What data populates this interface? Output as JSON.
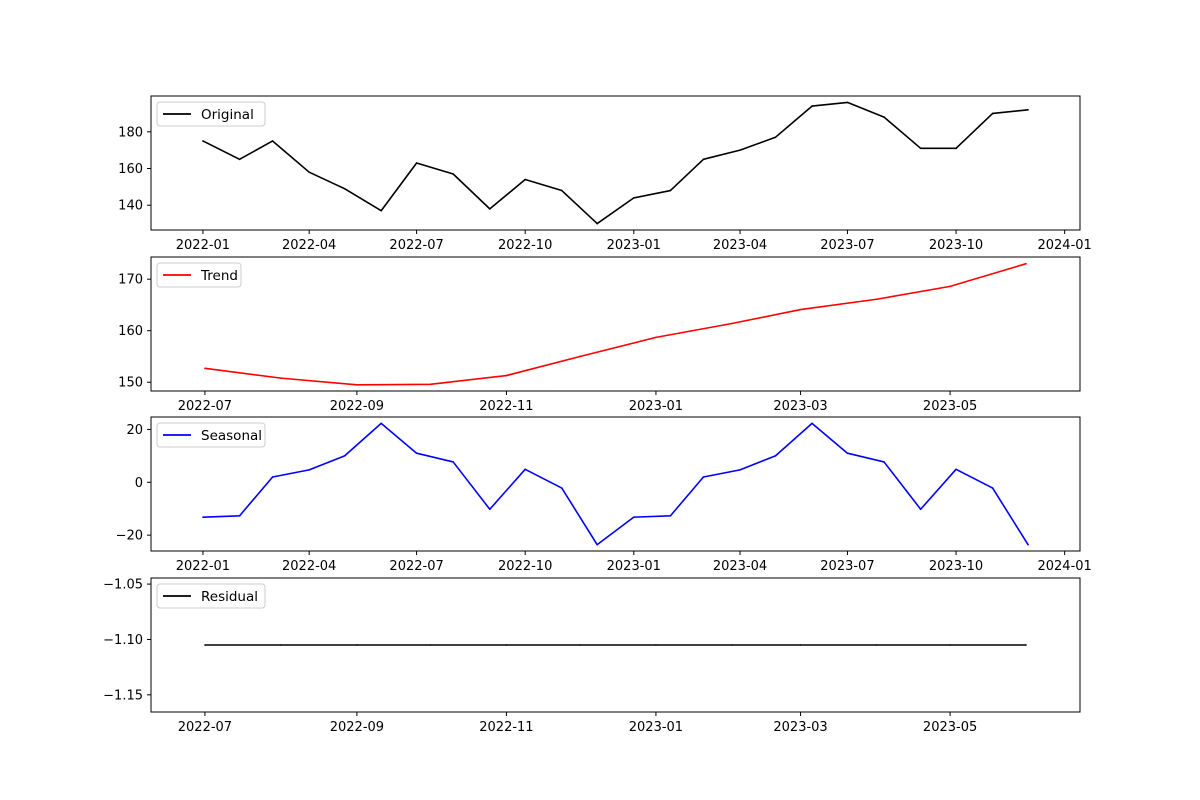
{
  "chart_data": [
    {
      "type": "line",
      "x_type": "date",
      "x": [
        "2022-01-01",
        "2022-02-01",
        "2022-03-01",
        "2022-04-01",
        "2022-05-01",
        "2022-06-01",
        "2022-07-01",
        "2022-08-01",
        "2022-09-01",
        "2022-10-01",
        "2022-11-01",
        "2022-12-01",
        "2023-01-01",
        "2023-02-01",
        "2023-03-01",
        "2023-04-01",
        "2023-05-01",
        "2023-06-01",
        "2023-07-01",
        "2023-08-01",
        "2023-09-01",
        "2023-10-01",
        "2023-11-01",
        "2023-12-01"
      ],
      "series": [
        {
          "name": "Original",
          "color": "#000000",
          "values": [
            175,
            165,
            175,
            158,
            149,
            137,
            163,
            157,
            138,
            154,
            148,
            130,
            144,
            148,
            165,
            170,
            177,
            194,
            196,
            188,
            171,
            171,
            190,
            192
          ]
        }
      ],
      "xlim": [
        "2021-11-18",
        "2024-01-14"
      ],
      "ylim": [
        126.5,
        199.5
      ],
      "xticks": [
        "2022-01",
        "2022-04",
        "2022-07",
        "2022-10",
        "2023-01",
        "2023-04",
        "2023-07",
        "2023-10",
        "2024-01"
      ],
      "yticks": [
        140,
        160,
        180
      ],
      "legend_position": "upper-left",
      "grid": false
    },
    {
      "type": "line",
      "x_type": "date",
      "x": [
        "2022-07-01",
        "2022-08-01",
        "2022-09-01",
        "2022-10-01",
        "2022-11-01",
        "2022-12-01",
        "2023-01-01",
        "2023-02-01",
        "2023-03-01",
        "2023-04-01",
        "2023-05-01",
        "2023-06-01"
      ],
      "series": [
        {
          "name": "Trend",
          "color": "#ff0000",
          "values": [
            152.7,
            150.8,
            149.5,
            149.6,
            151.3,
            155.0,
            158.7,
            161.4,
            164.1,
            166.1,
            168.6,
            173.0
          ]
        }
      ],
      "xlim": [
        "2022-06-09",
        "2023-06-23"
      ],
      "ylim": [
        148.3,
        174.3
      ],
      "xticks": [
        "2022-07",
        "2022-09",
        "2022-11",
        "2023-01",
        "2023-03",
        "2023-05"
      ],
      "yticks": [
        150,
        160,
        170
      ],
      "legend_position": "upper-left",
      "grid": false
    },
    {
      "type": "line",
      "x_type": "date",
      "x": [
        "2022-01-01",
        "2022-02-01",
        "2022-03-01",
        "2022-04-01",
        "2022-05-01",
        "2022-06-01",
        "2022-07-01",
        "2022-08-01",
        "2022-09-01",
        "2022-10-01",
        "2022-11-01",
        "2022-12-01",
        "2023-01-01",
        "2023-02-01",
        "2023-03-01",
        "2023-04-01",
        "2023-05-01",
        "2023-06-01",
        "2023-07-01",
        "2023-08-01",
        "2023-09-01",
        "2023-10-01",
        "2023-11-01",
        "2023-12-01"
      ],
      "series": [
        {
          "name": "Seasonal",
          "color": "#0000ff",
          "values": [
            -13.2,
            -12.7,
            2.0,
            4.7,
            10.0,
            22.3,
            11.0,
            7.7,
            -10.2,
            4.9,
            -2.2,
            -23.6,
            -13.2,
            -12.7,
            2.0,
            4.7,
            10.0,
            22.3,
            11.0,
            7.7,
            -10.2,
            4.9,
            -2.2,
            -23.6
          ]
        }
      ],
      "xlim": [
        "2021-11-18",
        "2024-01-14"
      ],
      "ylim": [
        -26.0,
        24.7
      ],
      "xticks": [
        "2022-01",
        "2022-04",
        "2022-07",
        "2022-10",
        "2023-01",
        "2023-04",
        "2023-07",
        "2023-10",
        "2024-01"
      ],
      "yticks": [
        -20,
        0,
        20
      ],
      "legend_position": "upper-left",
      "grid": false
    },
    {
      "type": "line",
      "x_type": "date",
      "x": [
        "2022-07-01",
        "2022-08-01",
        "2022-09-01",
        "2022-10-01",
        "2022-11-01",
        "2022-12-01",
        "2023-01-01",
        "2023-02-01",
        "2023-03-01",
        "2023-04-01",
        "2023-05-01",
        "2023-06-01"
      ],
      "series": [
        {
          "name": "Residual",
          "color": "#000000",
          "values": [
            -1.105,
            -1.105,
            -1.105,
            -1.105,
            -1.105,
            -1.105,
            -1.105,
            -1.105,
            -1.105,
            -1.105,
            -1.105,
            -1.105
          ]
        }
      ],
      "xlim": [
        "2022-06-09",
        "2023-06-23"
      ],
      "ylim": [
        -1.1655,
        -1.0445
      ],
      "xticks": [
        "2022-07",
        "2022-09",
        "2022-11",
        "2023-01",
        "2023-03",
        "2023-05"
      ],
      "yticks": [
        -1.05,
        -1.1,
        -1.15
      ],
      "ytick_decimals": 2,
      "legend_position": "upper-left",
      "grid": false
    }
  ]
}
